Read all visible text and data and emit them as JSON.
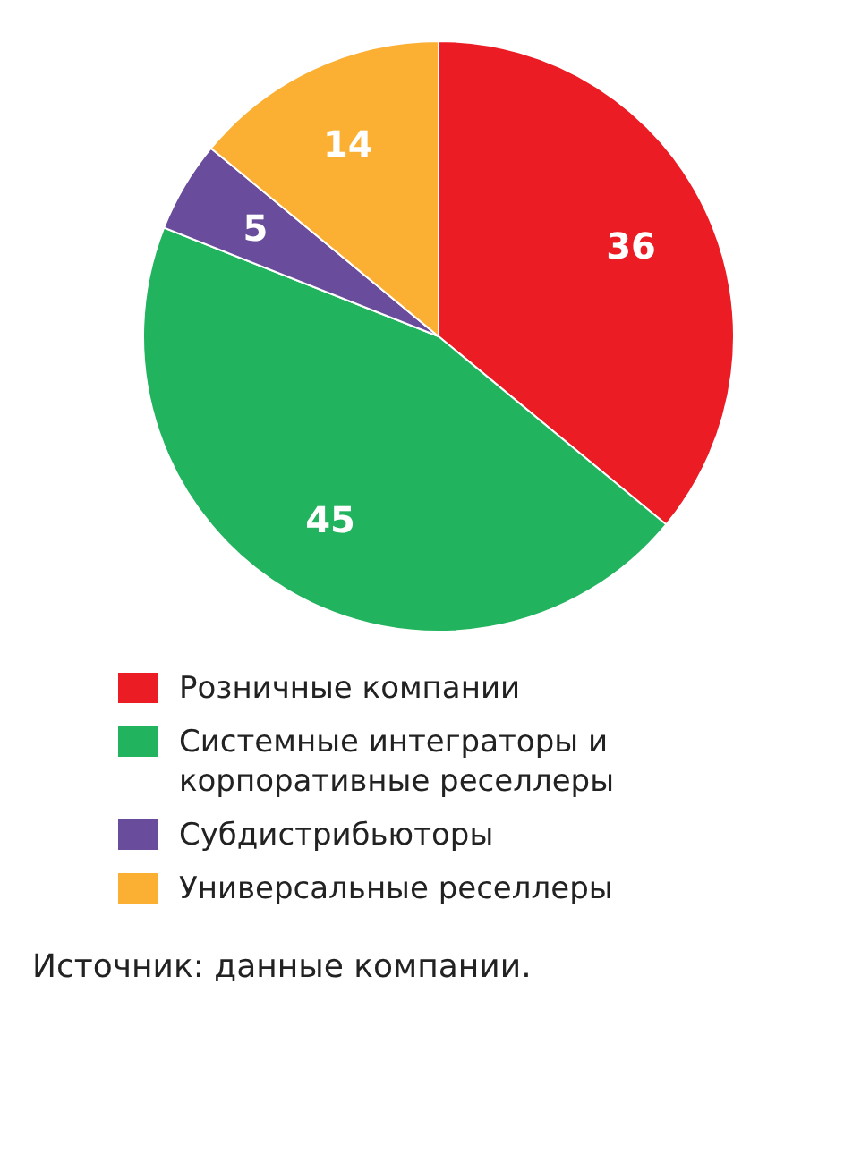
{
  "chart_data": {
    "type": "pie",
    "categories": [
      "Розничные компании",
      "Системные интеграторы и корпоративные реселлеры",
      "Субдистрибьюторы",
      "Универсальные реселлеры"
    ],
    "values": [
      36,
      45,
      5,
      14
    ],
    "colors": [
      "#ec1c24",
      "#22b35e",
      "#6a4c9c",
      "#fbb034"
    ],
    "data_labels": true,
    "legend": "bottom",
    "annotations": [
      "Источник: данные компании."
    ]
  }
}
